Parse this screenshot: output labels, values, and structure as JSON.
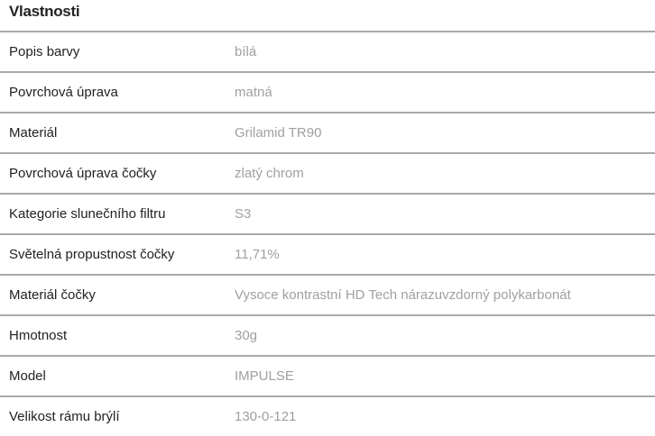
{
  "title": "Vlastnosti",
  "rows": [
    {
      "label": "Popis barvy",
      "value": "bílá"
    },
    {
      "label": "Povrchová úprava",
      "value": "matná"
    },
    {
      "label": "Materiál",
      "value": "Grilamid TR90"
    },
    {
      "label": "Povrchová úprava čočky",
      "value": "zlatý chrom"
    },
    {
      "label": "Kategorie slunečního filtru",
      "value": "S3"
    },
    {
      "label": "Světelná propustnost čočky",
      "value": "11,71%"
    },
    {
      "label": "Materiál čočky",
      "value": "Vysoce kontrastní HD Tech nárazuvzdorný polykarbonát"
    },
    {
      "label": "Hmotnost",
      "value": "30g"
    },
    {
      "label": "Model",
      "value": "IMPULSE"
    },
    {
      "label": "Velikost rámu brýlí",
      "value": "130-0-121"
    }
  ]
}
